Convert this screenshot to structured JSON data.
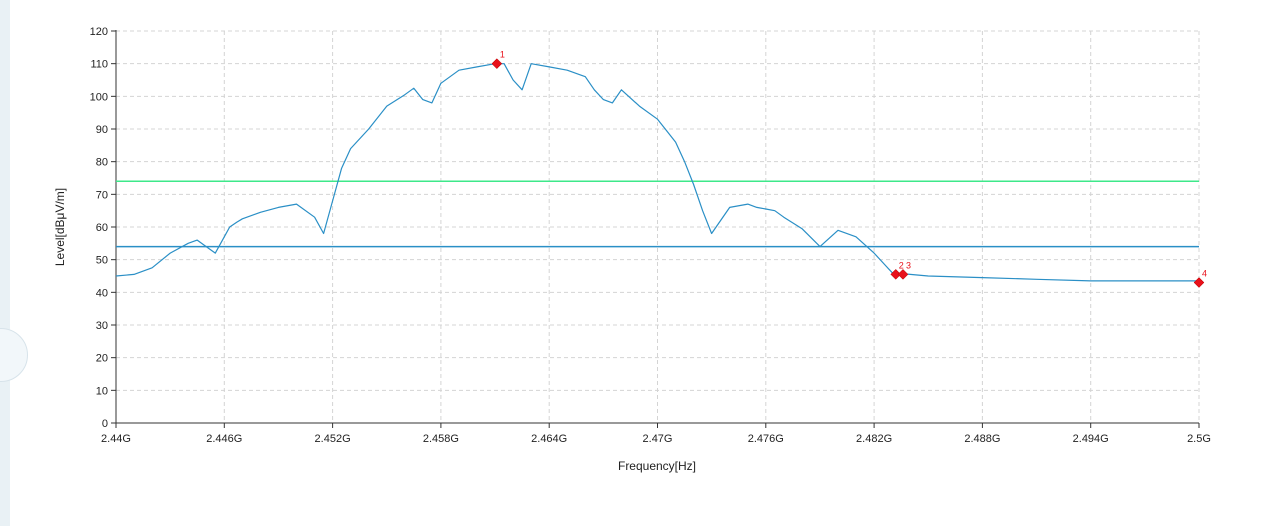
{
  "chart_data": {
    "type": "line",
    "xlabel": "Frequency[Hz]",
    "ylabel": "Level[dBμV/m]",
    "xlim": [
      2.44,
      2.5
    ],
    "ylim": [
      0,
      120
    ],
    "x_ticks": [
      2.44,
      2.446,
      2.452,
      2.458,
      2.464,
      2.47,
      2.476,
      2.482,
      2.488,
      2.494,
      2.5
    ],
    "x_tick_labels": [
      "2.44G",
      "2.446G",
      "2.452G",
      "2.458G",
      "2.464G",
      "2.47G",
      "2.476G",
      "2.482G",
      "2.488G",
      "2.494G",
      "2.5G"
    ],
    "y_ticks": [
      0,
      10,
      20,
      30,
      40,
      50,
      60,
      70,
      80,
      90,
      100,
      110,
      120
    ],
    "grid": true,
    "series": [
      {
        "color": "#2a8fc6",
        "x": [
          2.44,
          2.441,
          2.442,
          2.443,
          2.444,
          2.4445,
          2.445,
          2.4455,
          2.446,
          2.4463,
          2.4467,
          2.447,
          2.448,
          2.449,
          2.45,
          2.451,
          2.4515,
          2.452,
          2.4525,
          2.453,
          2.454,
          2.455,
          2.456,
          2.4565,
          2.457,
          2.4575,
          2.458,
          2.459,
          2.46,
          2.461,
          2.4615,
          2.462,
          2.4625,
          2.463,
          2.464,
          2.465,
          2.466,
          2.4665,
          2.467,
          2.4675,
          2.468,
          2.469,
          2.47,
          2.471,
          2.4715,
          2.472,
          2.4725,
          2.473,
          2.474,
          2.475,
          2.4755,
          2.476,
          2.4765,
          2.477,
          2.478,
          2.479,
          2.48,
          2.481,
          2.482,
          2.4825,
          2.483,
          2.484,
          2.485,
          2.488,
          2.491,
          2.494,
          2.497,
          2.5
        ],
        "y": [
          45,
          45.5,
          47.5,
          52,
          55,
          56,
          54,
          52,
          57,
          60,
          61.5,
          62.5,
          64.5,
          66,
          67,
          63,
          58,
          68,
          78,
          84,
          90,
          97,
          100.5,
          102.5,
          99,
          98,
          104,
          108,
          109,
          110,
          110,
          105,
          102,
          110,
          109,
          108,
          106,
          102,
          99,
          98,
          102,
          97,
          93,
          86,
          80,
          73,
          65,
          58,
          66,
          67,
          66,
          65.5,
          65,
          63,
          59.5,
          54,
          59,
          57,
          52,
          49,
          46,
          45.5,
          45,
          44.5,
          44,
          43.5,
          43.5,
          43.5
        ]
      }
    ],
    "limit_lines": [
      {
        "value": 74,
        "color": "#3ee88a"
      },
      {
        "value": 54,
        "color": "#2a8fc6"
      }
    ],
    "markers": [
      {
        "label": "1",
        "x": 2.4611,
        "y": 110
      },
      {
        "label": "2",
        "x": 2.4832,
        "y": 45.5
      },
      {
        "label": "3",
        "x": 2.4836,
        "y": 45.5
      },
      {
        "label": "4",
        "x": 2.5,
        "y": 43
      }
    ]
  }
}
